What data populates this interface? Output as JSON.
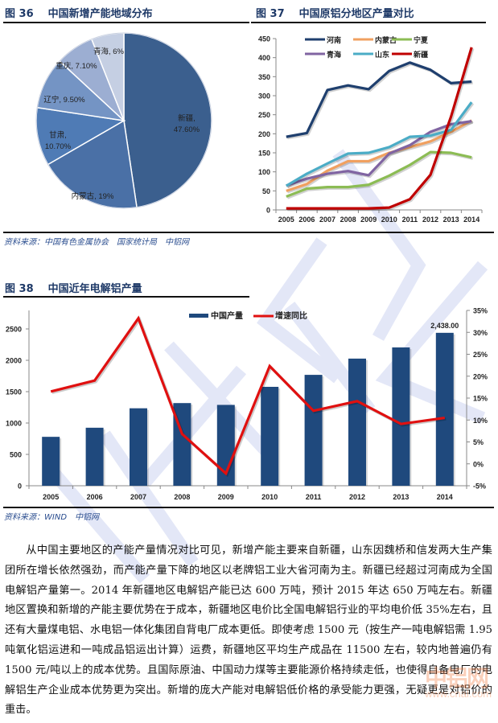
{
  "figures": {
    "fig36": {
      "number": "图 36",
      "title": "中国新增产能地域分布",
      "source": "资料来源：中国有色金属协会　国家统计局　中铝网"
    },
    "fig37": {
      "number": "图 37",
      "title": "中国原铝分地区产量对比"
    },
    "fig38": {
      "number": "图 38",
      "title": "中国近年电解铝产量",
      "source": "资料来源：WIND　中铝网",
      "bar_label_2014": "2,438.00"
    }
  },
  "colors": {
    "title_blue": "#1f3a68",
    "bar_blue": "#1f497d",
    "growth_red": "#e01010",
    "henan": "#1f3f6e",
    "neimenggu": "#f0a060",
    "ningxia": "#8cbc54",
    "qinghai": "#8064a2",
    "shandong": "#4bacc6",
    "xinjiang": "#c00000"
  },
  "chart_data": [
    {
      "type": "pie",
      "title": "中国新增产能地域分布",
      "labels": [
        "新疆",
        "内蒙古",
        "甘肃",
        "辽宁",
        "重庆",
        "青海"
      ],
      "values": [
        47.6,
        19,
        10.7,
        9.5,
        7.1,
        6
      ],
      "data_labels": [
        "新疆, 47.60%",
        "内蒙古, 19%",
        "甘肃, 10.70%",
        "辽宁, 9.50%",
        "重庆, 7.10%",
        "青海, 6%"
      ],
      "colors": [
        "#3b5f8e",
        "#4a70a6",
        "#4f7bb5",
        "#7494c4",
        "#9caed2",
        "#c5cfe3"
      ]
    },
    {
      "type": "line",
      "title": "中国原铝分地区产量对比",
      "x": [
        "2005",
        "2006",
        "2007",
        "2008",
        "2009",
        "2010",
        "2011",
        "2012",
        "2013",
        "2014"
      ],
      "ylim": [
        0,
        450
      ],
      "yticks": [
        0,
        50,
        100,
        150,
        200,
        250,
        300,
        350,
        400,
        450
      ],
      "legend_position": "top",
      "series": [
        {
          "name": "河南",
          "values": [
            192,
            202,
            315,
            327,
            317,
            365,
            387,
            368,
            333,
            337
          ]
        },
        {
          "name": "内蒙古",
          "values": [
            50,
            68,
            103,
            128,
            128,
            150,
            165,
            180,
            205,
            235
          ]
        },
        {
          "name": "宁夏",
          "values": [
            35,
            56,
            60,
            60,
            66,
            90,
            118,
            152,
            150,
            138
          ]
        },
        {
          "name": "青海",
          "values": [
            64,
            82,
            95,
            102,
            91,
            148,
            170,
            205,
            225,
            233
          ]
        },
        {
          "name": "山东",
          "values": [
            63,
            95,
            122,
            148,
            150,
            165,
            192,
            195,
            210,
            283
          ]
        },
        {
          "name": "新疆",
          "values": [
            4,
            4,
            4,
            4,
            4,
            6,
            28,
            92,
            245,
            427
          ]
        }
      ]
    },
    {
      "type": "bar",
      "title": "中国近年电解铝产量",
      "categories": [
        "2005",
        "2006",
        "2007",
        "2008",
        "2009",
        "2010",
        "2011",
        "2012",
        "2013",
        "2014"
      ],
      "ylim": [
        0,
        2800
      ],
      "yticks": [
        0,
        500,
        1000,
        1500,
        2000,
        2500
      ],
      "y2lim": [
        -5,
        35
      ],
      "y2ticks": [
        "-5%",
        "0%",
        "5%",
        "10%",
        "15%",
        "20%",
        "25%",
        "30%",
        "35%"
      ],
      "legend_position": "top",
      "series": [
        {
          "name": "中国产量",
          "type": "bar",
          "axis": "left",
          "values": [
            780,
            925,
            1235,
            1318,
            1289,
            1577,
            1768,
            2027,
            2205,
            2438
          ]
        },
        {
          "name": "增速同比",
          "type": "line",
          "axis": "right",
          "values": [
            16.5,
            19.0,
            33.2,
            6.8,
            -2.2,
            22.3,
            12.1,
            14.3,
            9.1,
            10.5
          ]
        }
      ],
      "annotations": [
        {
          "x": "2014",
          "text": "2,438.00"
        }
      ]
    }
  ],
  "body": {
    "paragraph": "从中国主要地区的产能产量情况对比可见，新增产能主要来自新疆，山东因魏桥和信发两大生产集团所在增长依然强劲，而产能产量下降的地区以老牌铝工业大省河南为主。新疆已经超过河南成为全国电解铝产量第一。2014 年新疆地区电解铝产能已达 600 万吨，预计 2015 年达 650 万吨左右。新疆地区置换和新增的产能主要优势在于成本，新疆地区电价比全国电解铝行业的平均电价低 35%左右，且还有大量煤电铝、水电铝一体化集团自背电厂成本更低。即使考虑 1500 元（按生产一吨电解铝需 1.95 吨氧化铝运进和一吨成品铝运出计算）运费，新疆地区平均生产成品在 11500 左右，较内地普遍仍有 1500 元/吨以上的成本优势。且国际原油、中国动力煤等主要能源价格持续走低，也使得自备电厂的电解铝生产企业成本优势更为突出。新增的庞大产能对电解铝低价格的承受能力更强，无疑更是对铝价的重击。"
  },
  "logo": {
    "name": "中铝网",
    "url": "www.cnal.com"
  }
}
